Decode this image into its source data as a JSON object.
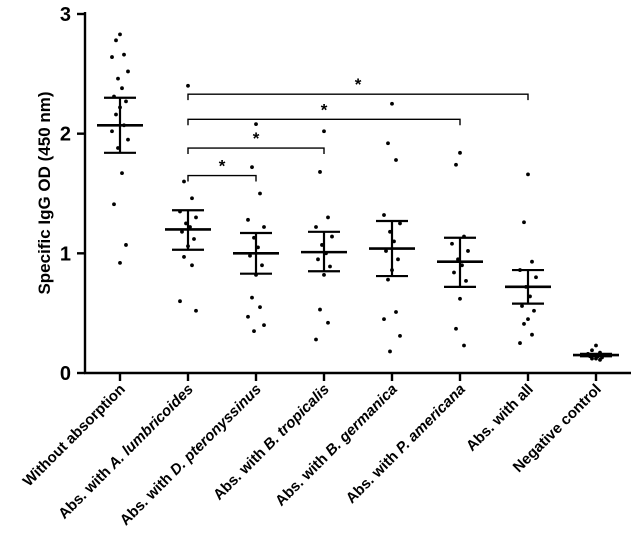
{
  "chart_data": {
    "type": "scatter",
    "title": "",
    "xlabel": "",
    "ylabel": "Specific IgG OD (450 nm)",
    "ylim": [
      0,
      3
    ],
    "yticks": [
      0,
      1,
      2,
      3
    ],
    "ytick_labels": [
      "0",
      "1",
      "2",
      "3"
    ],
    "grid": false,
    "legend": "none",
    "groups": [
      {
        "label": "Without absorption",
        "label_parts": [
          {
            "text": "Without absorption",
            "italic": false
          }
        ],
        "mean": 2.07,
        "err_low": 1.84,
        "err_high": 2.3,
        "points": [
          2.83,
          2.78,
          2.66,
          2.64,
          2.52,
          2.46,
          2.38,
          2.31,
          2.27,
          2.22,
          2.16,
          2.07,
          2.02,
          1.95,
          1.88,
          1.67,
          1.41,
          1.07,
          0.92
        ]
      },
      {
        "label": "Abs. with A. lumbricoides",
        "label_parts": [
          {
            "text": "Abs. with ",
            "italic": false
          },
          {
            "text": "A. lumbricoides",
            "italic": true
          }
        ],
        "mean": 1.2,
        "err_low": 1.03,
        "err_high": 1.36,
        "points": [
          2.4,
          1.6,
          1.46,
          1.35,
          1.3,
          1.25,
          1.22,
          1.18,
          1.12,
          1.06,
          0.97,
          0.9,
          0.6,
          0.52
        ]
      },
      {
        "label": "Abs. with D. pteronyssinus",
        "label_parts": [
          {
            "text": "Abs. with ",
            "italic": false
          },
          {
            "text": "D. pteronyssinus",
            "italic": true
          }
        ],
        "mean": 1.0,
        "err_low": 0.83,
        "err_high": 1.17,
        "points": [
          2.08,
          1.72,
          1.5,
          1.28,
          1.22,
          1.13,
          1.05,
          0.98,
          0.9,
          0.82,
          0.63,
          0.55,
          0.47,
          0.4,
          0.35
        ]
      },
      {
        "label": "Abs. with B. tropicalis",
        "label_parts": [
          {
            "text": "Abs. with ",
            "italic": false
          },
          {
            "text": "B. tropicalis",
            "italic": true
          }
        ],
        "mean": 1.01,
        "err_low": 0.85,
        "err_high": 1.18,
        "points": [
          2.02,
          1.68,
          1.3,
          1.22,
          1.14,
          1.07,
          1.0,
          0.95,
          0.89,
          0.82,
          0.53,
          0.42,
          0.28
        ]
      },
      {
        "label": "Abs. with B. germanica",
        "label_parts": [
          {
            "text": "Abs. with ",
            "italic": false
          },
          {
            "text": "B. germanica",
            "italic": true
          }
        ],
        "mean": 1.04,
        "err_low": 0.81,
        "err_high": 1.27,
        "points": [
          2.25,
          1.92,
          1.78,
          1.32,
          1.25,
          1.18,
          1.1,
          1.02,
          0.95,
          0.86,
          0.78,
          0.51,
          0.45,
          0.31,
          0.18
        ]
      },
      {
        "label": "Abs. with P. americana",
        "label_parts": [
          {
            "text": "Abs. with ",
            "italic": false
          },
          {
            "text": "P. americana",
            "italic": true
          }
        ],
        "mean": 0.93,
        "err_low": 0.72,
        "err_high": 1.13,
        "points": [
          1.84,
          1.74,
          1.14,
          1.08,
          1.02,
          0.95,
          0.9,
          0.84,
          0.77,
          0.62,
          0.37,
          0.23
        ]
      },
      {
        "label": "Abs. with all",
        "label_parts": [
          {
            "text": "Abs. with all",
            "italic": false
          }
        ],
        "mean": 0.72,
        "err_low": 0.58,
        "err_high": 0.86,
        "points": [
          1.66,
          1.26,
          0.93,
          0.86,
          0.8,
          0.72,
          0.64,
          0.56,
          0.52,
          0.45,
          0.41,
          0.32,
          0.25
        ]
      },
      {
        "label": "Negative control",
        "label_parts": [
          {
            "text": "Negative control",
            "italic": false
          }
        ],
        "mean": 0.15,
        "err_low": 0.14,
        "err_high": 0.16,
        "points": [
          0.23,
          0.19,
          0.17,
          0.16,
          0.15,
          0.15,
          0.14,
          0.14,
          0.13,
          0.12,
          0.12,
          0.11
        ]
      }
    ],
    "annotations": [
      {
        "from": 1,
        "to": 2,
        "label": "*",
        "y": 1.65
      },
      {
        "from": 1,
        "to": 3,
        "label": "*",
        "y": 1.88
      },
      {
        "from": 1,
        "to": 5,
        "label": "*",
        "y": 2.12
      },
      {
        "from": 1,
        "to": 6,
        "label": "*",
        "y": 2.33
      }
    ]
  }
}
